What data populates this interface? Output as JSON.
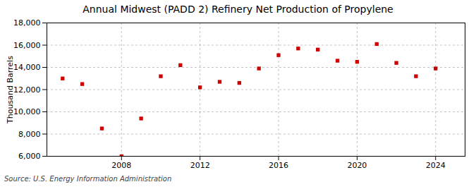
{
  "chart_data": {
    "type": "scatter",
    "title": "Annual Midwest (PADD 2) Refinery Net Production of Propylene",
    "ylabel": "Thousand Barrels",
    "source": "Source: U.S. Energy Information Administration",
    "x": [
      2005,
      2006,
      2007,
      2008,
      2009,
      2010,
      2011,
      2012,
      2013,
      2014,
      2015,
      2016,
      2017,
      2018,
      2019,
      2020,
      2021,
      2022,
      2023,
      2024
    ],
    "values": [
      13000,
      12500,
      8500,
      6000,
      9400,
      13200,
      14200,
      12200,
      12700,
      12600,
      13900,
      15100,
      15700,
      15600,
      14600,
      14500,
      16100,
      14400,
      13200,
      13900
    ],
    "color": "#cc0000",
    "marker": "square",
    "xlim": [
      2004.2,
      2025.5
    ],
    "xticks": [
      2008,
      2012,
      2016,
      2020,
      2024
    ],
    "ylim": [
      6000,
      18000
    ],
    "yticks": [
      {
        "value": 6000,
        "label": "6,000"
      },
      {
        "value": 8000,
        "label": "8,000"
      },
      {
        "value": 10000,
        "label": "10,000"
      },
      {
        "value": 12000,
        "label": "12,000"
      },
      {
        "value": 14000,
        "label": "14,000"
      },
      {
        "value": 16000,
        "label": "16,000"
      },
      {
        "value": 18000,
        "label": "18,000"
      }
    ],
    "grid": true
  }
}
